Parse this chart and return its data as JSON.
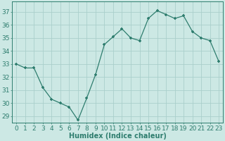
{
  "x": [
    0,
    1,
    2,
    3,
    4,
    5,
    6,
    7,
    8,
    9,
    10,
    11,
    12,
    13,
    14,
    15,
    16,
    17,
    18,
    19,
    20,
    21,
    22,
    23
  ],
  "y": [
    33,
    32.7,
    32.7,
    31.2,
    30.3,
    30.0,
    29.7,
    28.7,
    30.4,
    32.2,
    34.5,
    35.1,
    35.7,
    35.0,
    34.8,
    36.5,
    37.1,
    36.8,
    36.5,
    36.7,
    35.5,
    35.0,
    34.8,
    33.2
  ],
  "xlabel": "Humidex (Indice chaleur)",
  "ylim": [
    28.5,
    37.8
  ],
  "xlim": [
    -0.5,
    23.5
  ],
  "yticks": [
    29,
    30,
    31,
    32,
    33,
    34,
    35,
    36,
    37
  ],
  "xticks": [
    0,
    1,
    2,
    3,
    4,
    5,
    6,
    7,
    8,
    9,
    10,
    11,
    12,
    13,
    14,
    15,
    16,
    17,
    18,
    19,
    20,
    21,
    22,
    23
  ],
  "line_color": "#2e7d6e",
  "marker_color": "#2e7d6e",
  "bg_color": "#cce8e4",
  "grid_color": "#aacfcb",
  "axis_color": "#2e7d6e",
  "label_color": "#2e7d6e",
  "xlabel_fontsize": 7,
  "tick_fontsize": 6.5
}
